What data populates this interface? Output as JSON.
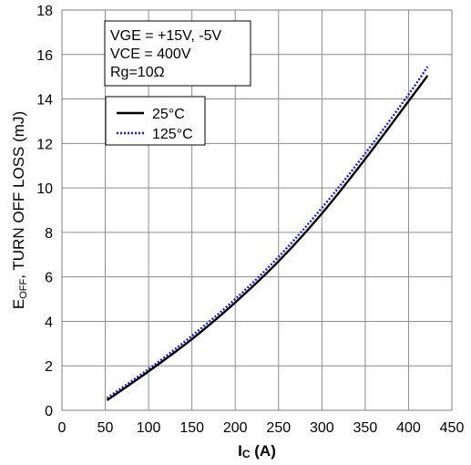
{
  "chart_data": {
    "type": "line",
    "xlabel": {
      "main": "I",
      "sub": "C",
      "unit": " (A)"
    },
    "ylabel": {
      "main": "E",
      "sub": "OFF",
      "rest": ", TURN OFF LOSS (mJ)"
    },
    "xlim": [
      0,
      450
    ],
    "ylim": [
      0,
      18
    ],
    "xticks": [
      0,
      50,
      100,
      150,
      200,
      250,
      300,
      350,
      400,
      450
    ],
    "yticks": [
      0,
      2,
      4,
      6,
      8,
      10,
      12,
      14,
      16,
      18
    ],
    "grid": true,
    "conditions": [
      "VGE = +15V, -5V",
      "VCE = 400V",
      "Rg=10Ω"
    ],
    "legend_position": "top-left",
    "series": [
      {
        "name": "25°C",
        "style": "solid",
        "color": "#000000",
        "x": [
          52,
          100,
          150,
          200,
          250,
          300,
          350,
          400,
          422
        ],
        "y": [
          0.45,
          1.75,
          3.2,
          4.85,
          6.7,
          8.85,
          11.3,
          13.9,
          15.05
        ]
      },
      {
        "name": "125°C",
        "style": "dotted",
        "color": "#1a1acc",
        "x": [
          52,
          100,
          150,
          200,
          250,
          300,
          350,
          400,
          422
        ],
        "y": [
          0.55,
          1.85,
          3.35,
          5.0,
          6.9,
          9.1,
          11.55,
          14.2,
          15.45
        ]
      }
    ]
  }
}
